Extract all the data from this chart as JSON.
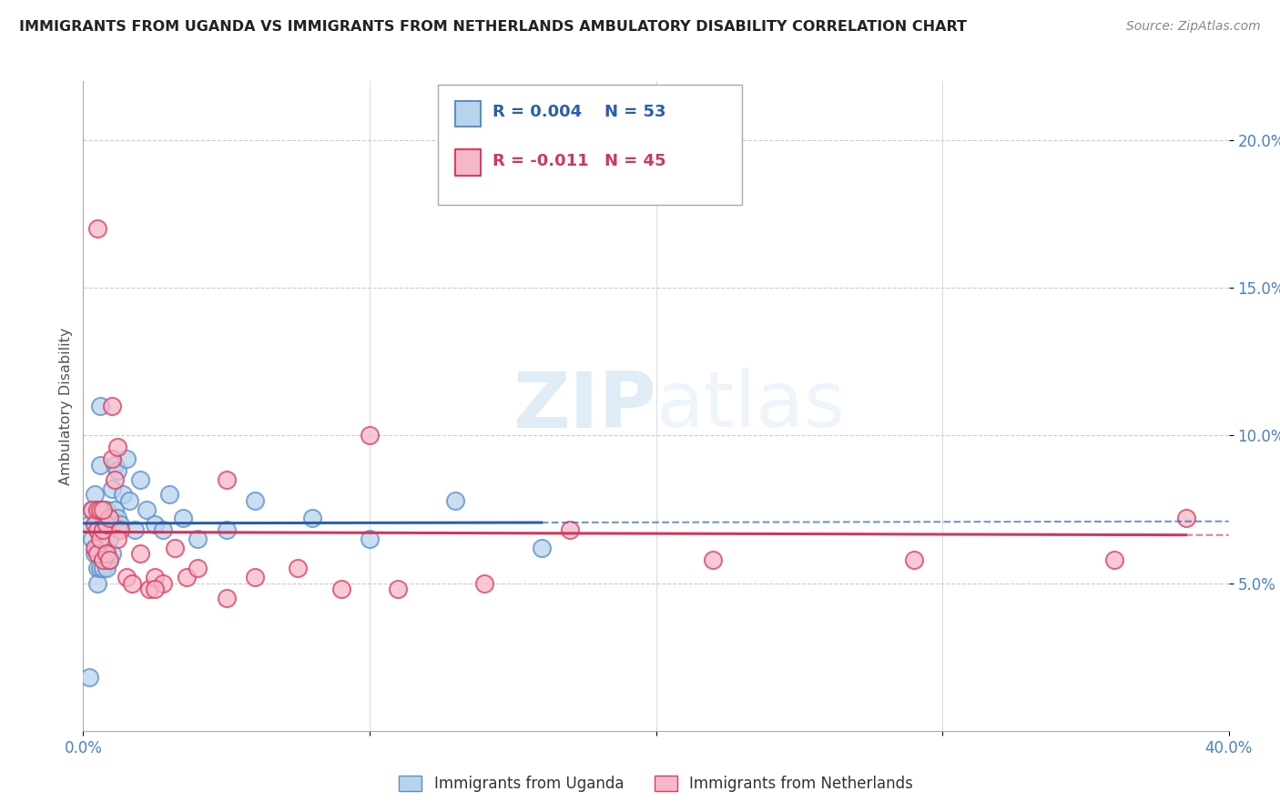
{
  "title": "IMMIGRANTS FROM UGANDA VS IMMIGRANTS FROM NETHERLANDS AMBULATORY DISABILITY CORRELATION CHART",
  "source": "Source: ZipAtlas.com",
  "ylabel": "Ambulatory Disability",
  "xlim": [
    0.0,
    0.4
  ],
  "ylim": [
    0.0,
    0.22
  ],
  "yticks": [
    0.05,
    0.1,
    0.15,
    0.2
  ],
  "ytick_labels": [
    "5.0%",
    "10.0%",
    "15.0%",
    "20.0%"
  ],
  "xticks": [
    0.0,
    0.1,
    0.2,
    0.3,
    0.4
  ],
  "xtick_labels": [
    "0.0%",
    "",
    "",
    "",
    "40.0%"
  ],
  "color_uganda_face": "#b8d4ec",
  "color_uganda_edge": "#5a90c8",
  "color_netherlands_face": "#f5b8c8",
  "color_netherlands_edge": "#d84060",
  "color_uganda_line": "#2a5fa8",
  "color_netherlands_line": "#d03858",
  "uganda_x": [
    0.002,
    0.003,
    0.003,
    0.004,
    0.004,
    0.005,
    0.005,
    0.005,
    0.005,
    0.005,
    0.005,
    0.006,
    0.006,
    0.006,
    0.006,
    0.006,
    0.007,
    0.007,
    0.007,
    0.007,
    0.008,
    0.008,
    0.008,
    0.008,
    0.009,
    0.009,
    0.009,
    0.01,
    0.01,
    0.01,
    0.011,
    0.011,
    0.012,
    0.012,
    0.013,
    0.014,
    0.015,
    0.016,
    0.018,
    0.02,
    0.022,
    0.025,
    0.028,
    0.03,
    0.035,
    0.04,
    0.05,
    0.06,
    0.08,
    0.1,
    0.13,
    0.16,
    0.002
  ],
  "uganda_y": [
    0.07,
    0.075,
    0.065,
    0.08,
    0.06,
    0.075,
    0.072,
    0.068,
    0.062,
    0.055,
    0.05,
    0.11,
    0.09,
    0.075,
    0.068,
    0.055,
    0.075,
    0.068,
    0.06,
    0.055,
    0.075,
    0.068,
    0.062,
    0.055,
    0.072,
    0.065,
    0.058,
    0.082,
    0.072,
    0.06,
    0.09,
    0.075,
    0.088,
    0.072,
    0.07,
    0.08,
    0.092,
    0.078,
    0.068,
    0.085,
    0.075,
    0.07,
    0.068,
    0.08,
    0.072,
    0.065,
    0.068,
    0.078,
    0.072,
    0.065,
    0.078,
    0.062,
    0.018
  ],
  "netherlands_x": [
    0.003,
    0.004,
    0.004,
    0.005,
    0.005,
    0.005,
    0.006,
    0.006,
    0.007,
    0.007,
    0.008,
    0.008,
    0.009,
    0.009,
    0.01,
    0.01,
    0.011,
    0.012,
    0.013,
    0.015,
    0.017,
    0.02,
    0.023,
    0.025,
    0.028,
    0.032,
    0.036,
    0.04,
    0.05,
    0.06,
    0.075,
    0.09,
    0.11,
    0.14,
    0.17,
    0.22,
    0.29,
    0.36,
    0.385,
    0.1,
    0.05,
    0.025,
    0.012,
    0.007,
    0.005
  ],
  "netherlands_y": [
    0.075,
    0.07,
    0.062,
    0.075,
    0.068,
    0.06,
    0.075,
    0.065,
    0.068,
    0.058,
    0.07,
    0.06,
    0.072,
    0.058,
    0.11,
    0.092,
    0.085,
    0.096,
    0.068,
    0.052,
    0.05,
    0.06,
    0.048,
    0.052,
    0.05,
    0.062,
    0.052,
    0.055,
    0.045,
    0.052,
    0.055,
    0.048,
    0.048,
    0.05,
    0.068,
    0.058,
    0.058,
    0.058,
    0.072,
    0.1,
    0.085,
    0.048,
    0.065,
    0.075,
    0.17
  ]
}
